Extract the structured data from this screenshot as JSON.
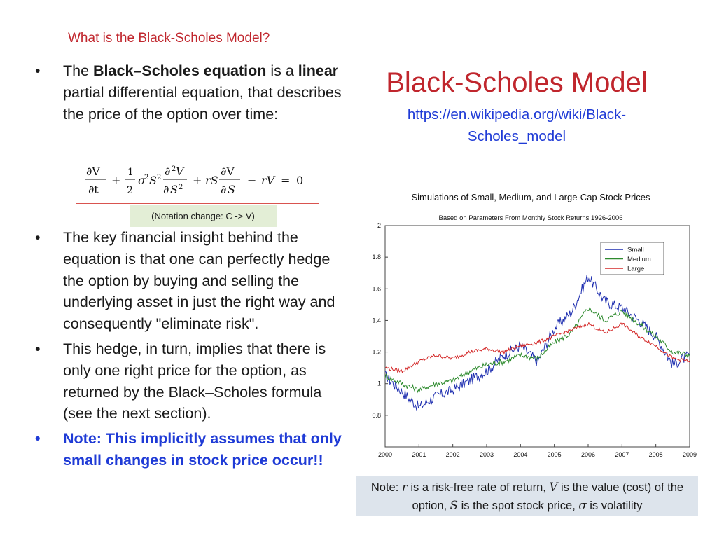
{
  "kicker": "What is the Black-Scholes Model?",
  "bullets_top": [
    {
      "parts": [
        {
          "t": "The ",
          "b": false
        },
        {
          "t": "Black–Scholes equation",
          "b": true
        },
        {
          "t": " is a ",
          "b": false
        },
        {
          "t": "linear",
          "b": true
        },
        {
          "t": " partial differential equation, that describes the price of the option over time:",
          "b": false
        }
      ]
    }
  ],
  "equation": "∂V/∂t + ½σ²S² ∂²V/∂S² + rS ∂V/∂S − rV = 0",
  "notation_note": "(Notation change: C -> V)",
  "bullets_bottom": [
    "The key financial insight behind the equation is that one can perfectly hedge the option by buying and selling the underlying asset in just the right way and consequently \"eliminate risk\".",
    "This hedge, in turn, implies that there is only one right price for the option, as returned by the Black–Scholes formula (see the next section)."
  ],
  "note_bullet": "Note:  This implicitly assumes that only small changes in stock price occur!!",
  "main_title": "Black-Scholes Model",
  "wiki_link": "https://en.wikipedia.org/wiki/Black-Scholes_model",
  "footnote": {
    "prefix": "Note:  ",
    "r": "r",
    "r_text": " is a risk-free rate of return, ",
    "V": "V",
    "V_text": " is the value (cost) of the option, ",
    "S": "S",
    "S_text": " is the spot stock price,  ",
    "sigma": "σ",
    "sigma_text": " is volatility"
  },
  "colors": {
    "accent_red": "#c0262d",
    "link_blue": "#1f3bd6",
    "small": "#1f2fb0",
    "medium": "#2e8b2e",
    "large": "#d42a2a"
  },
  "chart_data": {
    "type": "line",
    "title": "Simulations of Small, Medium, and Large-Cap Stock Prices",
    "subtitle": "Based on Parameters From Monthly Stock Returns 1926-2006",
    "xlabel": "",
    "ylabel": "",
    "x_ticks": [
      "2000",
      "2001",
      "2002",
      "2003",
      "2004",
      "2005",
      "2006",
      "2007",
      "2008",
      "2009"
    ],
    "y_ticks": [
      "0.8",
      "1",
      "1.2",
      "1.4",
      "1.6",
      "1.8",
      "2"
    ],
    "xlim": [
      2000,
      2009
    ],
    "ylim": [
      0.6,
      2.0
    ],
    "legend_position": "top-right",
    "x": [
      2000,
      2000.5,
      2001,
      2001.5,
      2002,
      2002.5,
      2003,
      2003.5,
      2004,
      2004.5,
      2005,
      2005.5,
      2006,
      2006.5,
      2007,
      2007.5,
      2008,
      2008.5,
      2009
    ],
    "series": [
      {
        "name": "Small",
        "color": "#1f2fb0",
        "values": [
          1.05,
          0.95,
          0.85,
          0.92,
          0.96,
          1.02,
          1.08,
          1.18,
          1.24,
          1.14,
          1.35,
          1.45,
          1.68,
          1.52,
          1.48,
          1.4,
          1.3,
          1.12,
          1.18
        ]
      },
      {
        "name": "Medium",
        "color": "#2e8b2e",
        "values": [
          1.05,
          1.0,
          0.96,
          1.0,
          1.02,
          1.08,
          1.12,
          1.14,
          1.18,
          1.16,
          1.26,
          1.32,
          1.48,
          1.4,
          1.46,
          1.38,
          1.3,
          1.2,
          1.18
        ]
      },
      {
        "name": "Large",
        "color": "#d42a2a",
        "values": [
          1.1,
          1.08,
          1.14,
          1.18,
          1.16,
          1.2,
          1.22,
          1.2,
          1.24,
          1.26,
          1.3,
          1.34,
          1.38,
          1.32,
          1.38,
          1.3,
          1.24,
          1.16,
          1.14
        ]
      }
    ]
  }
}
